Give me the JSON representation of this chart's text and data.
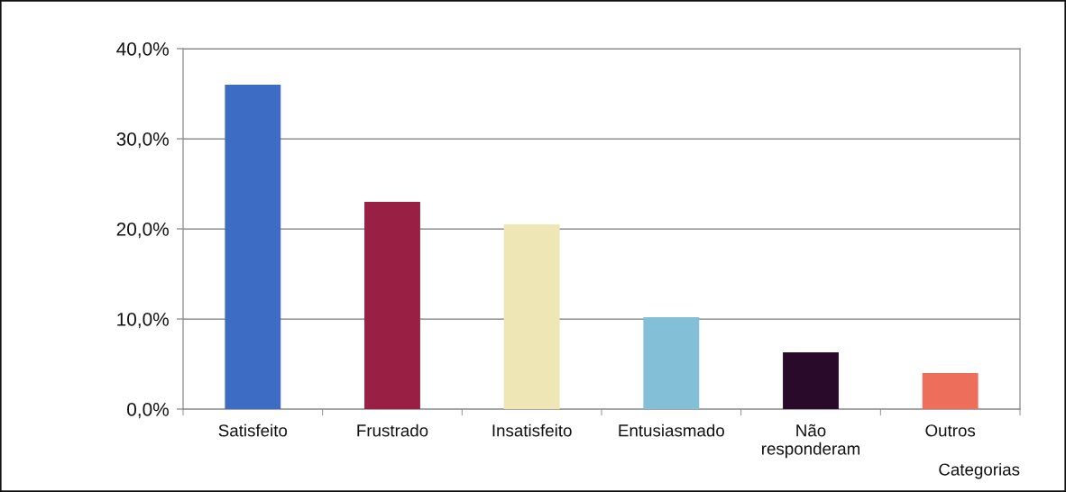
{
  "chart_data": {
    "type": "bar",
    "xlabel": "Categorias",
    "categories": [
      "Satisfeito",
      "Frustrado",
      "Insatisfeito",
      "Entusiasmado",
      "Não\nresponderam",
      "Outros"
    ],
    "values": [
      36.0,
      23.0,
      20.5,
      10.2,
      6.3,
      4.0
    ],
    "colors": [
      "#3d6cc4",
      "#9a1f45",
      "#efe6b5",
      "#84bfd8",
      "#2a0a2a",
      "#ee6e5c"
    ],
    "ylim": [
      0,
      40
    ],
    "yticks": [
      {
        "value": 0,
        "label": "0,0%"
      },
      {
        "value": 10,
        "label": "10,0%"
      },
      {
        "value": 20,
        "label": "20,0%"
      },
      {
        "value": 30,
        "label": "30,0%"
      },
      {
        "value": 40,
        "label": "40,0%"
      }
    ],
    "grid": "y",
    "legend": false
  }
}
